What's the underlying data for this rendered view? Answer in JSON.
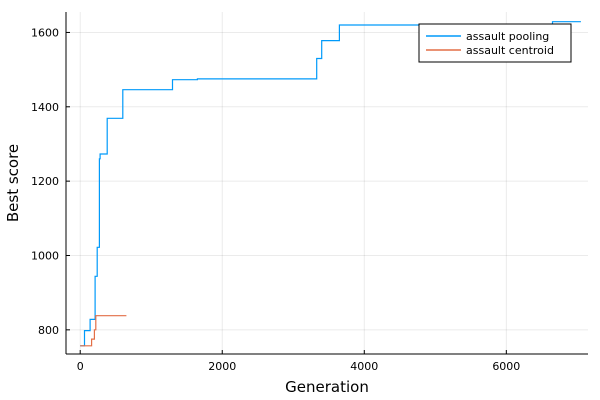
{
  "chart_data": {
    "type": "line",
    "xlabel": "Generation",
    "ylabel": "Best score",
    "xlim": [
      -200,
      7150
    ],
    "ylim": [
      735,
      1655
    ],
    "xticks": [
      0,
      2000,
      4000,
      6000
    ],
    "yticks": [
      800,
      1000,
      1200,
      1400,
      1600
    ],
    "grid": true,
    "legend_position": "top-right",
    "series": [
      {
        "name": "assault pooling",
        "color": "#009AFA",
        "x": [
          0,
          60,
          60,
          140,
          140,
          210,
          210,
          240,
          240,
          270,
          270,
          280,
          280,
          300,
          300,
          380,
          380,
          600,
          600,
          1300,
          1300,
          1650,
          1650,
          3330,
          3330,
          3400,
          3400,
          3650,
          3650,
          6650,
          6650,
          7050
        ],
        "y": [
          757,
          757,
          798,
          798,
          828,
          828,
          944,
          944,
          1022,
          1022,
          1260,
          1260,
          1273,
          1273,
          1273,
          1273,
          1369,
          1369,
          1446,
          1446,
          1473,
          1473,
          1475,
          1475,
          1530,
          1530,
          1578,
          1578,
          1620,
          1620,
          1629,
          1629
        ]
      },
      {
        "name": "assault centroid",
        "color": "#E36F47",
        "x": [
          0,
          160,
          160,
          200,
          200,
          220,
          220,
          650
        ],
        "y": [
          757,
          757,
          775,
          775,
          800,
          800,
          838,
          838
        ]
      }
    ]
  }
}
